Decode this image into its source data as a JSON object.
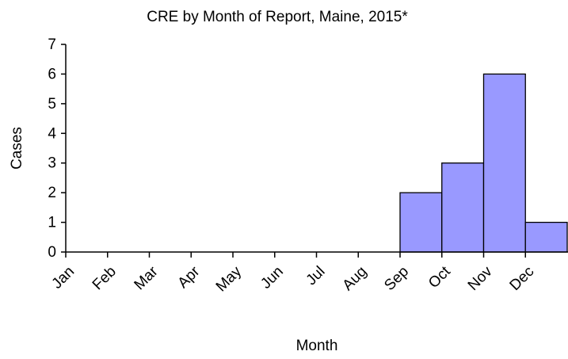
{
  "chart_data": {
    "type": "bar",
    "title": "CRE by Month of Report, Maine, 2015*",
    "x_label": "Month",
    "y_label": "Cases",
    "categories": [
      "Jan",
      "Feb",
      "Mar",
      "Apr",
      "May",
      "Jun",
      "Jul",
      "Aug",
      "Sep",
      "Oct",
      "Nov",
      "Dec"
    ],
    "values": [
      0,
      0,
      0,
      0,
      0,
      0,
      0,
      0,
      2,
      3,
      6,
      1
    ],
    "color": "#9999ff",
    "ylim": [
      0,
      7
    ],
    "yticks": [
      0,
      1,
      2,
      3,
      4,
      5,
      6,
      7
    ],
    "grid": false
  }
}
